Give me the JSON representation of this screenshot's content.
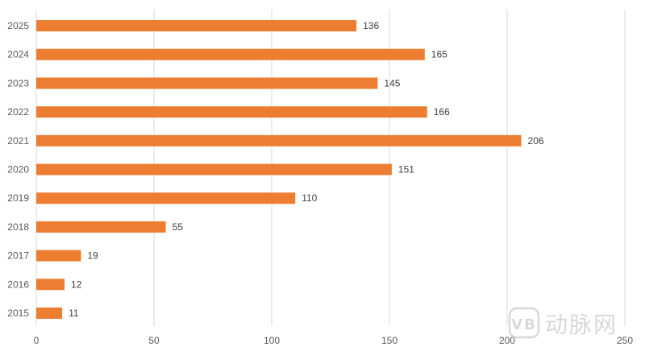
{
  "chart_data": {
    "type": "bar",
    "orientation": "horizontal",
    "categories": [
      "2025",
      "2024",
      "2023",
      "2022",
      "2021",
      "2020",
      "2019",
      "2018",
      "2017",
      "2016",
      "2015"
    ],
    "values": [
      136,
      165,
      145,
      166,
      206,
      151,
      110,
      55,
      19,
      12,
      11
    ],
    "xlim": [
      0,
      250
    ],
    "x_ticks": [
      0,
      50,
      100,
      150,
      200,
      250
    ],
    "grid": "vertical",
    "data_labels": true,
    "bar_color": "#ED7D31",
    "title": "",
    "xlabel": "",
    "ylabel": ""
  },
  "watermark": {
    "logo_mark": "VB",
    "text": "动脉网"
  }
}
